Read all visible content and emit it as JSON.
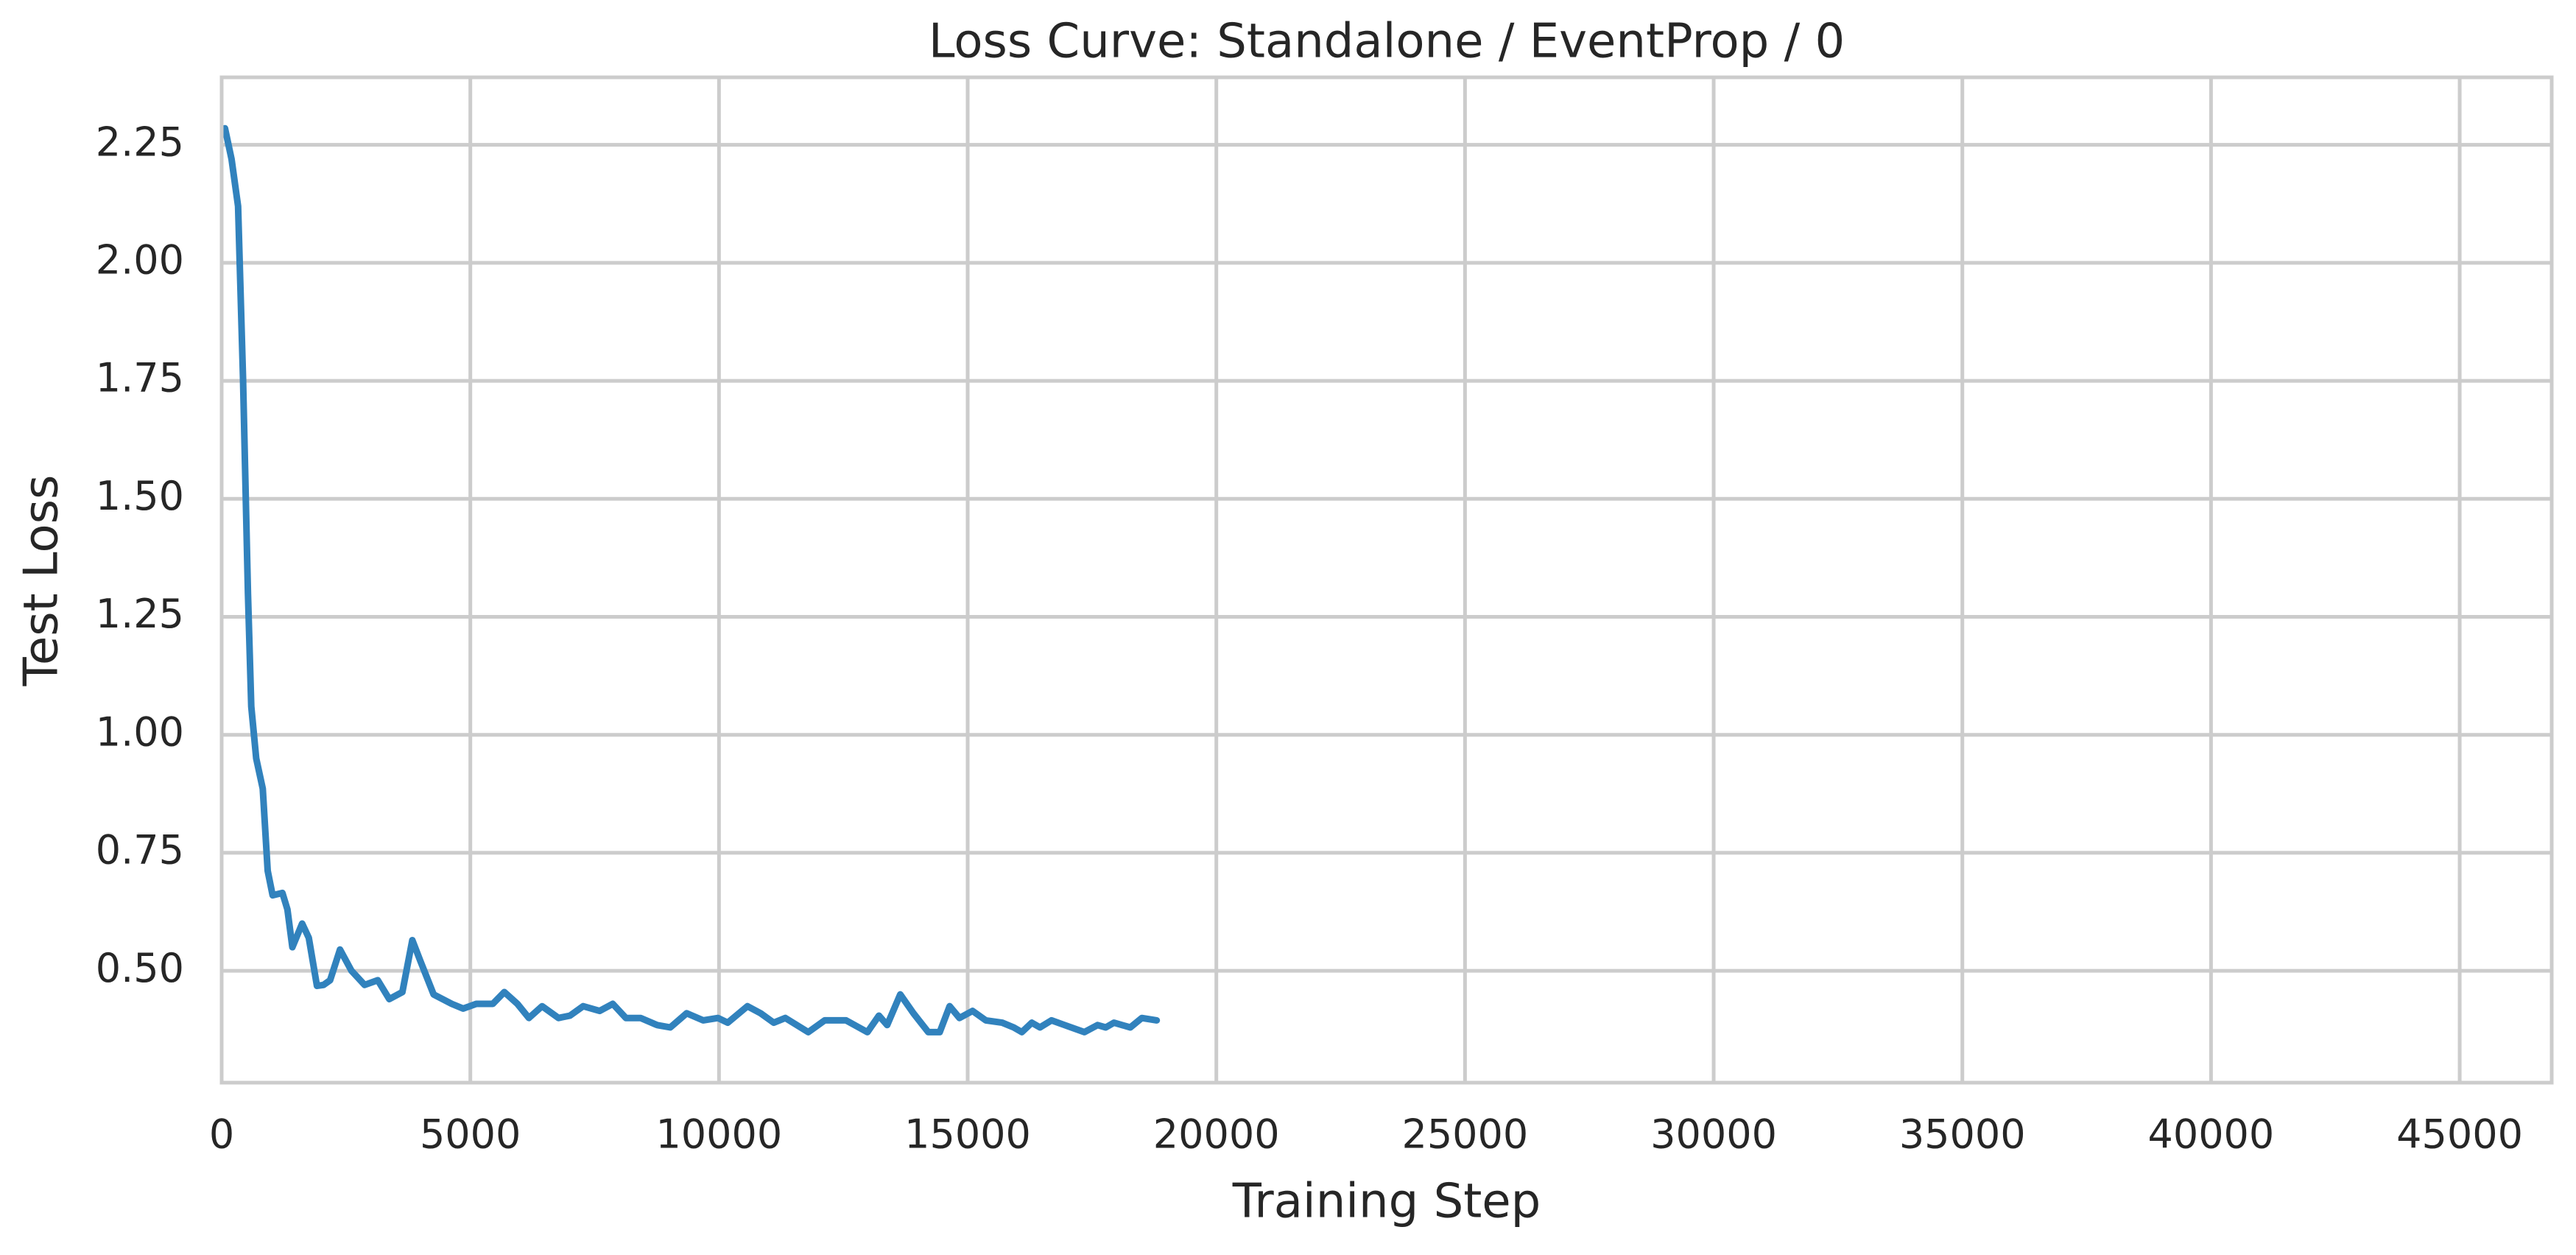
{
  "chart_data": {
    "type": "line",
    "title": "Loss Curve: Standalone / EventProp / 0",
    "x_label": "Training Step",
    "y_label": "Test Loss",
    "x": [
      66,
      198,
      330,
      430,
      529,
      595,
      694,
      826,
      925,
      1024,
      1222,
      1322,
      1421,
      1619,
      1751,
      1916,
      2048,
      2181,
      2379,
      2610,
      2874,
      3139,
      3370,
      3634,
      3833,
      3998,
      4262,
      4626,
      4857,
      5121,
      5452,
      5683,
      5947,
      6178,
      6443,
      6773,
      7004,
      7269,
      7599,
      7864,
      8128,
      8425,
      8756,
      9020,
      9350,
      9681,
      9978,
      10176,
      10573,
      10837,
      11101,
      11333,
      11795,
      12126,
      12555,
      12985,
      13216,
      13381,
      13645,
      13910,
      14207,
      14438,
      14637,
      14835,
      15099,
      15364,
      15694,
      15925,
      16090,
      16289,
      16454,
      16685,
      16950,
      17346,
      17611,
      17776,
      17941,
      18271,
      18502,
      18800
    ],
    "series": [
      {
        "name": "Test Loss",
        "color": "#3182bd",
        "values": [
          2.285,
          2.22,
          2.12,
          1.756,
          1.3,
          1.06,
          0.95,
          0.886,
          0.712,
          0.66,
          0.665,
          0.63,
          0.55,
          0.6,
          0.57,
          0.468,
          0.47,
          0.48,
          0.545,
          0.5,
          0.47,
          0.48,
          0.44,
          0.455,
          0.565,
          0.52,
          0.45,
          0.43,
          0.42,
          0.43,
          0.43,
          0.455,
          0.43,
          0.4,
          0.425,
          0.4,
          0.405,
          0.425,
          0.415,
          0.43,
          0.4,
          0.4,
          0.385,
          0.38,
          0.41,
          0.395,
          0.4,
          0.39,
          0.425,
          0.41,
          0.39,
          0.4,
          0.37,
          0.395,
          0.395,
          0.37,
          0.405,
          0.385,
          0.45,
          0.41,
          0.37,
          0.37,
          0.425,
          0.4,
          0.415,
          0.395,
          0.39,
          0.38,
          0.37,
          0.39,
          0.38,
          0.395,
          0.385,
          0.37,
          0.385,
          0.38,
          0.39,
          0.38,
          0.4,
          0.395
        ]
      }
    ],
    "xlim": [
      0,
      46850
    ],
    "ylim": [
      0.263,
      2.393
    ],
    "xticks": [
      0,
      5000,
      10000,
      15000,
      20000,
      25000,
      30000,
      35000,
      40000,
      45000
    ],
    "yticks": [
      {
        "value": 0.5,
        "label": "0.50"
      },
      {
        "value": 0.75,
        "label": "0.75"
      },
      {
        "value": 1.0,
        "label": "1.00"
      },
      {
        "value": 1.25,
        "label": "1.25"
      },
      {
        "value": 1.5,
        "label": "1.50"
      },
      {
        "value": 1.75,
        "label": "1.75"
      },
      {
        "value": 2.0,
        "label": "2.00"
      },
      {
        "value": 2.25,
        "label": "2.25"
      }
    ],
    "grid": true
  }
}
